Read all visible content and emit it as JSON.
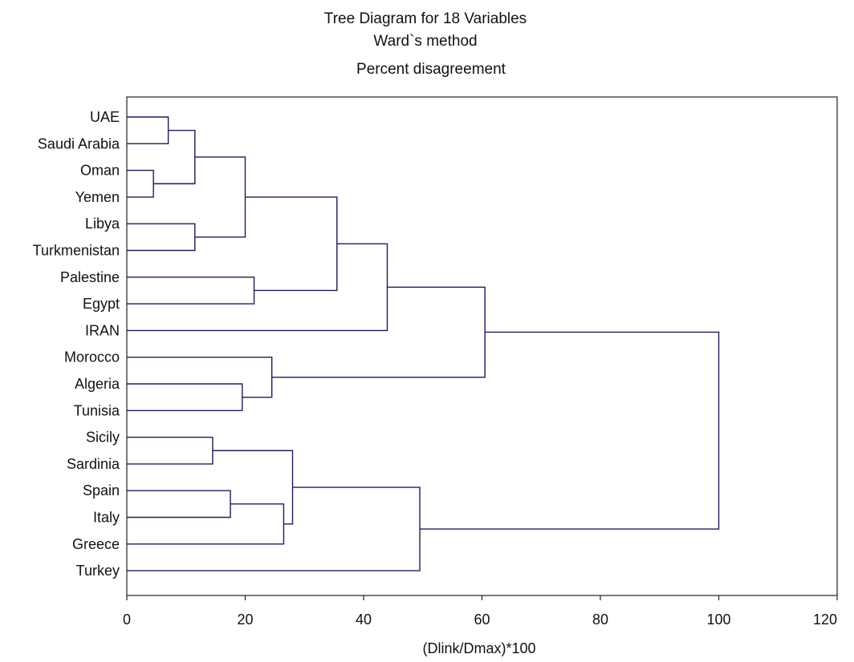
{
  "chart_data": {
    "type": "dendrogram",
    "title_lines": [
      "Tree Diagram for 18  Variables",
      "Ward`s method",
      "Percent disagreement"
    ],
    "xlabel": "(Dlink/Dmax)*100",
    "ylabel": "",
    "xlim": [
      0,
      120
    ],
    "xticks": [
      0,
      20,
      40,
      60,
      80,
      100,
      120
    ],
    "grid": false,
    "leaves": [
      "UAE",
      "Saudi Arabia",
      "Oman",
      "Yemen",
      "Libya",
      "Turkmenistan",
      "Palestine",
      "Egypt",
      "IRAN",
      "Morocco",
      "Algeria",
      "Tunisia",
      "Sicily",
      "Sardinia",
      "Spain",
      "Italy",
      "Greece",
      "Turkey"
    ],
    "merges": [
      {
        "id": "c1",
        "left": "Oman",
        "right": "Yemen",
        "height": 4.5
      },
      {
        "id": "c2",
        "left": "UAE",
        "right": "Saudi Arabia",
        "height": 7
      },
      {
        "id": "c3",
        "left": "c2",
        "right": "c1",
        "height": 11.5
      },
      {
        "id": "c4",
        "left": "Libya",
        "right": "Turkmenistan",
        "height": 11.5
      },
      {
        "id": "c5",
        "left": "Sicily",
        "right": "Sardinia",
        "height": 14.5
      },
      {
        "id": "c6",
        "left": "Spain",
        "right": "Italy",
        "height": 17.5
      },
      {
        "id": "c7",
        "left": "Algeria",
        "right": "Tunisia",
        "height": 19.5
      },
      {
        "id": "c8",
        "left": "c3",
        "right": "c4",
        "height": 20
      },
      {
        "id": "c9",
        "left": "Palestine",
        "right": "Egypt",
        "height": 21.5
      },
      {
        "id": "c10",
        "left": "Morocco",
        "right": "c7",
        "height": 24.5
      },
      {
        "id": "c11",
        "left": "c6",
        "right": "Greece",
        "height": 26.5
      },
      {
        "id": "c12",
        "left": "c5",
        "right": "c11",
        "height": 28
      },
      {
        "id": "c13",
        "left": "c8",
        "right": "c9",
        "height": 35.5
      },
      {
        "id": "c14",
        "left": "c13",
        "right": "IRAN",
        "height": 44
      },
      {
        "id": "c15",
        "left": "c12",
        "right": "Turkey",
        "height": 49.5
      },
      {
        "id": "c16",
        "left": "c14",
        "right": "c10",
        "height": 60.5
      },
      {
        "id": "c17",
        "left": "c16",
        "right": "c15",
        "height": 100
      }
    ]
  }
}
